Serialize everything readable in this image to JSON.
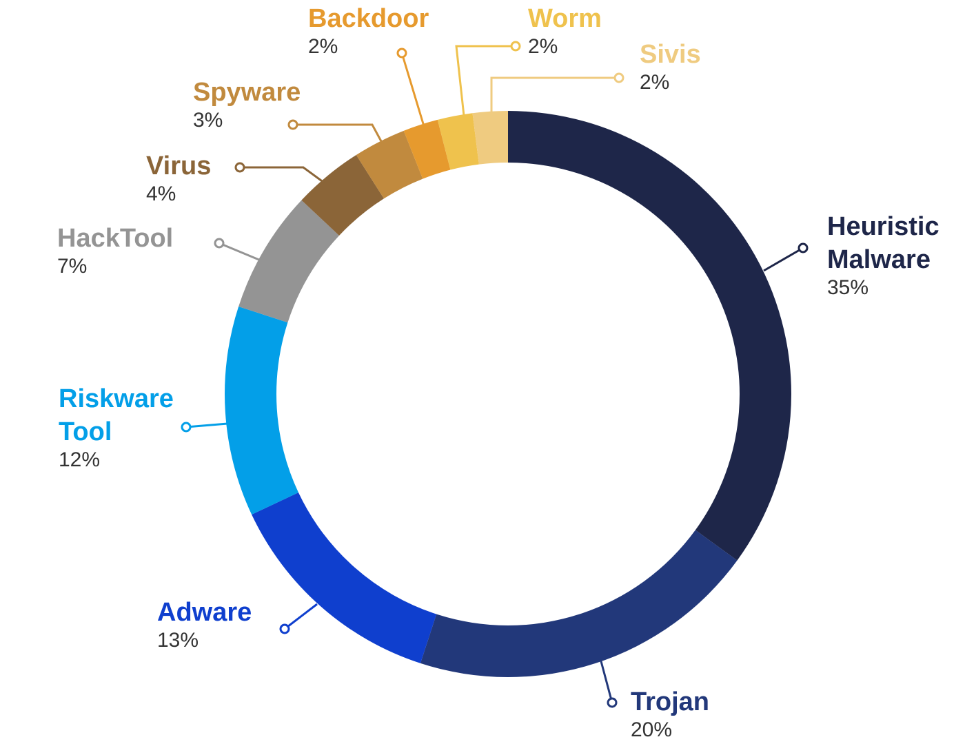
{
  "chart_data": {
    "type": "donut",
    "categories": [
      "Heuristic Malware",
      "Trojan",
      "Adware",
      "Riskware Tool",
      "HackTool",
      "Virus",
      "Spyware",
      "Backdoor",
      "Worm",
      "Sivis"
    ],
    "values": [
      35,
      20,
      13,
      12,
      7,
      4,
      3,
      2,
      2,
      2
    ],
    "value_labels": [
      "35%",
      "20%",
      "13%",
      "12%",
      "7%",
      "4%",
      "3%",
      "2%",
      "2%",
      "2%"
    ],
    "colors": [
      "#1e2649",
      "#22387a",
      "#0f3fce",
      "#039fe8",
      "#949494",
      "#8b6538",
      "#c18a3e",
      "#e69a2e",
      "#efc24d",
      "#efcb80"
    ]
  }
}
